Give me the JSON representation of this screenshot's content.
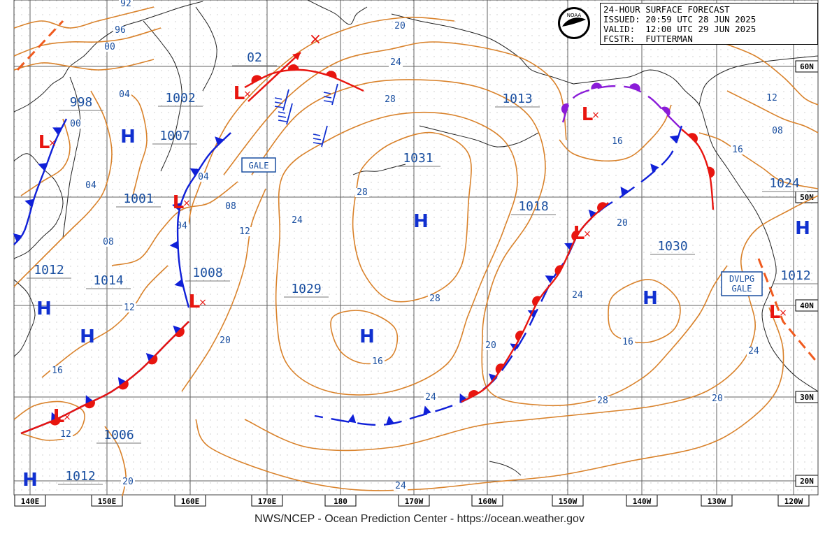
{
  "title": {
    "line1": "24-HOUR SURFACE FORECAST",
    "line2": "ISSUED: 20:59 UTC 28 JUN 2025",
    "line3": "VALID:  12:00 UTC 29 JUN 2025",
    "line4": "FCSTR:  FUTTERMAN"
  },
  "footer": "NWS/NCEP - Ocean Prediction Center - https://ocean.weather.gov",
  "logo_text": "NOAA",
  "lon_labels": [
    "140E",
    "150E",
    "160E",
    "170E",
    "180",
    "170W",
    "160W",
    "150W",
    "140W",
    "130W",
    "120W"
  ],
  "lat_labels": [
    "60N",
    "50N",
    "40N",
    "30N",
    "20N"
  ],
  "high_centers": [
    {
      "symbol": "H",
      "pressure": "1031"
    },
    {
      "symbol": "H",
      "pressure": "1029"
    },
    {
      "symbol": "H",
      "pressure": "1030"
    },
    {
      "symbol": "H",
      "pressure": "1024"
    },
    {
      "symbol": "H",
      "pressure": "1012"
    },
    {
      "symbol": "H",
      "pressure": "1014"
    },
    {
      "symbol": "H",
      "pressure": "1012"
    },
    {
      "symbol": "H",
      "pressure": "1007"
    }
  ],
  "low_centers": [
    {
      "symbol": "L",
      "pressure": "998"
    },
    {
      "symbol": "L",
      "pressure": "1002"
    },
    {
      "symbol": "L",
      "pressure": "1001"
    },
    {
      "symbol": "L",
      "pressure": "1008"
    },
    {
      "symbol": "L",
      "pressure": "1006"
    },
    {
      "symbol": "L",
      "pressure": "1013"
    },
    {
      "symbol": "L",
      "pressure": "1018"
    },
    {
      "symbol": "L",
      "pressure": "1012"
    }
  ],
  "other_pressure_labels": [
    "02"
  ],
  "isobar_labels": [
    "92",
    "96",
    "00",
    "04",
    "00",
    "04",
    "08",
    "04",
    "04",
    "08",
    "12",
    "12",
    "16",
    "20",
    "24",
    "28",
    "28",
    "28",
    "16",
    "20",
    "24",
    "20",
    "24",
    "28",
    "24",
    "20",
    "16",
    "20",
    "24",
    "16",
    "12",
    "08",
    "16",
    "12",
    "20",
    "24"
  ],
  "warnings": [
    "GALE",
    "DVLPG\nGALE"
  ],
  "colors": {
    "isobar": "#d9822b",
    "warm_front": "#e8150f",
    "cold_front": "#1020d8",
    "occluded": "#8a1cd8",
    "trough": "#f05a1e",
    "grid": "#606060",
    "pressure_text": "#1a4fa0",
    "high": "#1030d0",
    "low": "#e8150f"
  }
}
